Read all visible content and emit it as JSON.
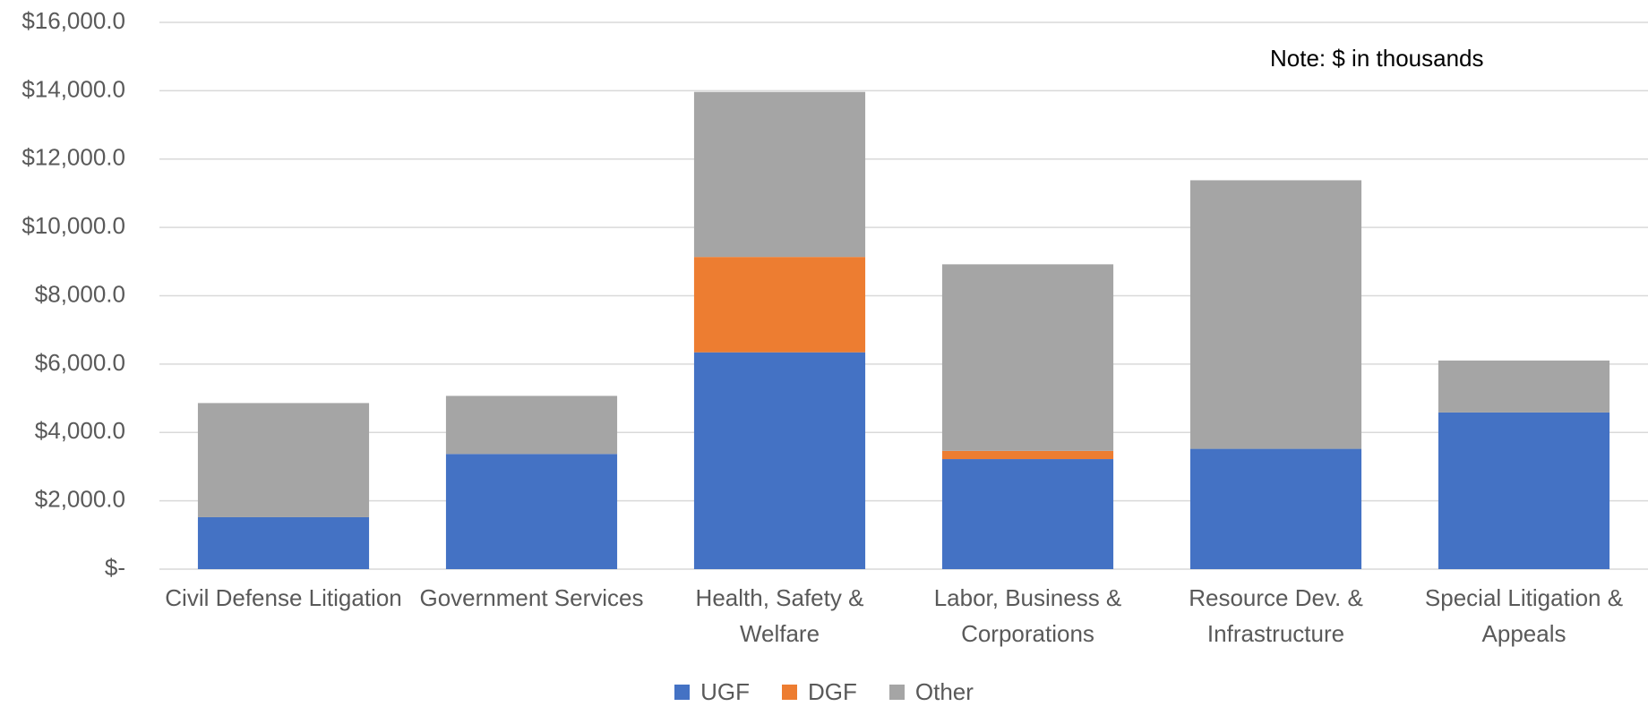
{
  "chart_data": {
    "type": "stacked_bar",
    "annotation": "Note: $ in thousands",
    "categories": [
      "Civil Defense Litigation",
      "Government Services",
      "Health, Safety & Welfare",
      "Labor, Business & Corporations",
      "Resource Dev. & Infrastructure",
      "Special Litigation & Appeals"
    ],
    "series": [
      {
        "name": "UGF",
        "color": "#4472c4",
        "values": [
          1520,
          3370,
          6345,
          3220,
          3520,
          4585
        ]
      },
      {
        "name": "DGF",
        "color": "#ed7d31",
        "values": [
          0,
          0,
          2790,
          240,
          0,
          0
        ]
      },
      {
        "name": "Other",
        "color": "#a5a5a5",
        "values": [
          3340,
          1700,
          4830,
          5460,
          7860,
          1520
        ]
      }
    ],
    "ylim": [
      0,
      16000
    ],
    "yticks": [
      {
        "value": 0,
        "label": "$-"
      },
      {
        "value": 2000,
        "label": "$2,000.0"
      },
      {
        "value": 4000,
        "label": "$4,000.0"
      },
      {
        "value": 6000,
        "label": "$6,000.0"
      },
      {
        "value": 8000,
        "label": "$8,000.0"
      },
      {
        "value": 10000,
        "label": "$10,000.0"
      },
      {
        "value": 12000,
        "label": "$12,000.0"
      },
      {
        "value": 14000,
        "label": "$14,000.0"
      },
      {
        "value": 16000,
        "label": "$16,000.0"
      }
    ],
    "grid": true,
    "legend": "bottom"
  }
}
